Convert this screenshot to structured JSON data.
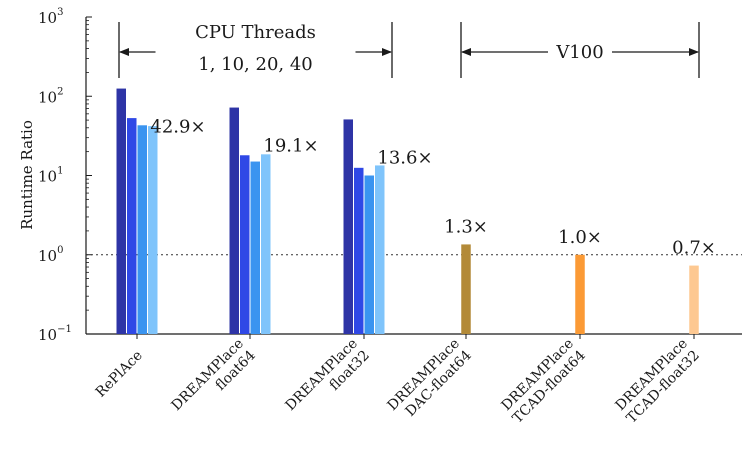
{
  "chart_data": {
    "type": "bar",
    "ylabel": "Runtime Ratio",
    "yscale": "log",
    "ylim": [
      0.1,
      1000
    ],
    "y_ticks": [
      {
        "base": "10",
        "exp": "3",
        "value": 1000
      },
      {
        "base": "10",
        "exp": "2",
        "value": 100
      },
      {
        "base": "10",
        "exp": "1",
        "value": 10
      },
      {
        "base": "10",
        "exp": "0",
        "value": 1
      },
      {
        "base": "10",
        "exp": "−1",
        "value": 0.1
      }
    ],
    "reference_line": {
      "y": 1,
      "style": "dotted"
    },
    "categories": [
      {
        "lines": [
          "RePlAce"
        ]
      },
      {
        "lines": [
          "DREAMPlace",
          "float64"
        ]
      },
      {
        "lines": [
          "DREAMPlace",
          "float32"
        ]
      },
      {
        "lines": [
          "DREAMPlace",
          "DAC-float64"
        ]
      },
      {
        "lines": [
          "DREAMPlace",
          "TCAD-float64"
        ]
      },
      {
        "lines": [
          "DREAMPlace",
          "TCAD-float32"
        ]
      }
    ],
    "groups": [
      {
        "category": 0,
        "values": [
          125,
          53,
          43,
          42
        ],
        "colors": [
          "#2e34a6",
          "#2f48e6",
          "#3a94f0",
          "#7fc4fb"
        ],
        "annotation": "42.9×"
      },
      {
        "category": 1,
        "values": [
          72,
          18,
          15,
          18.5
        ],
        "colors": [
          "#2e34a6",
          "#2f48e6",
          "#3a94f0",
          "#7fc4fb"
        ],
        "annotation": "19.1×"
      },
      {
        "category": 2,
        "values": [
          51,
          12.5,
          10,
          13.4
        ],
        "colors": [
          "#2e34a6",
          "#2f48e6",
          "#3a94f0",
          "#7fc4fb"
        ],
        "annotation": "13.6×"
      },
      {
        "category": 3,
        "values": [
          1.35
        ],
        "colors": [
          "#b38a38"
        ],
        "annotation": "1.3×"
      },
      {
        "category": 4,
        "values": [
          1.0
        ],
        "colors": [
          "#fb9a35"
        ],
        "annotation": "1.0×"
      },
      {
        "category": 5,
        "values": [
          0.73
        ],
        "colors": [
          "#fdc891"
        ],
        "annotation": "0.7×"
      }
    ],
    "brackets": [
      {
        "title": "CPU Threads",
        "subtitle": "1, 10, 20, 40",
        "from_category": 0,
        "to_category": 2
      },
      {
        "title": "V100",
        "subtitle": "",
        "from_category": 3,
        "to_category": 5
      }
    ]
  }
}
